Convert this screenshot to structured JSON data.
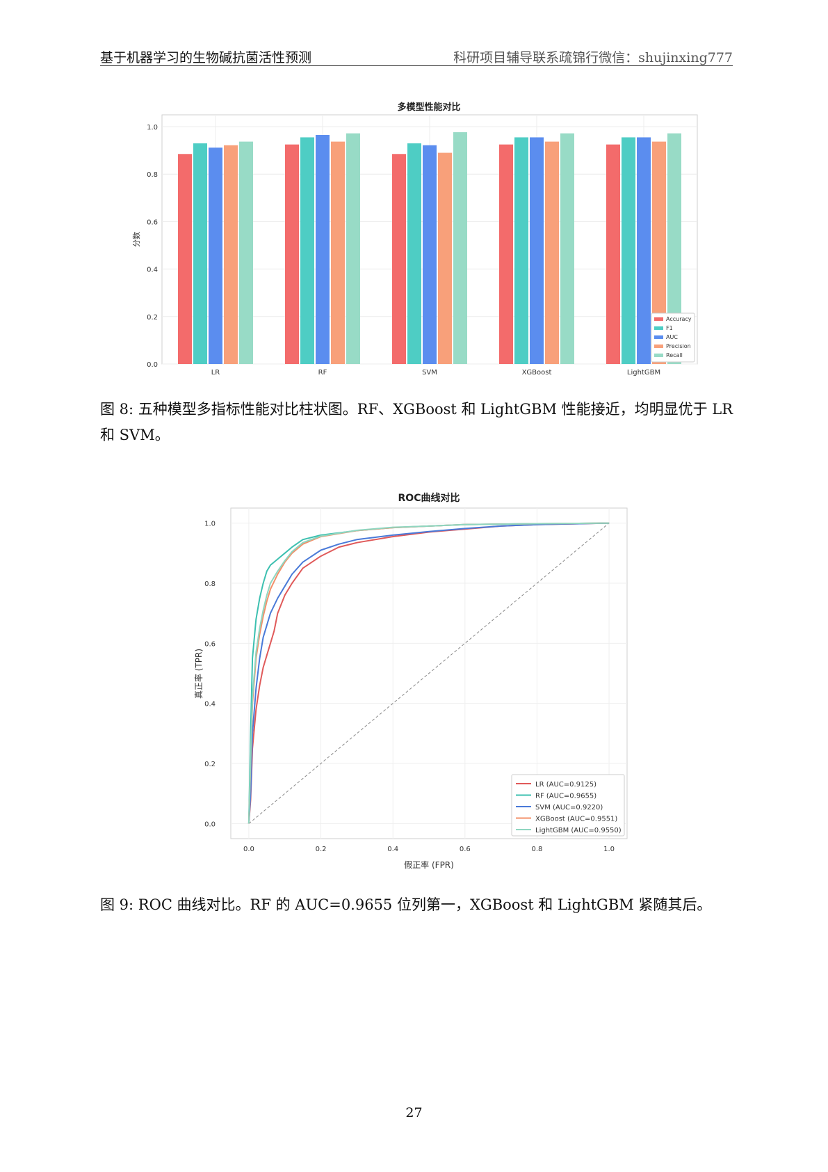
{
  "header": {
    "left": "基于机器学习的生物碱抗菌活性预测",
    "right": "科研项目辅导联系疏锦行微信：shujinxing777"
  },
  "figure8": {
    "caption": "图 8: 五种模型多指标性能对比柱状图。RF、XGBoost 和 LightGBM 性能接近，均明显优于 LR 和 SVM。"
  },
  "figure9": {
    "caption": "图 9: ROC 曲线对比。RF 的 AUC=0.9655 位列第一，XGBoost 和 LightGBM 紧随其后。"
  },
  "page_number": "27",
  "chart_data": [
    {
      "type": "bar",
      "title": "多模型性能对比",
      "xlabel": "",
      "ylabel": "分数",
      "ylim": [
        0,
        1.05
      ],
      "yticks": [
        "0.0",
        "0.2",
        "0.4",
        "0.6",
        "0.8",
        "1.0"
      ],
      "grid": true,
      "legend_position": "lower-right",
      "categories": [
        "LR",
        "RF",
        "SVM",
        "XGBoost",
        "LightGBM"
      ],
      "series": [
        {
          "name": "Accuracy",
          "color": "#f36b6b",
          "values": [
            0.885,
            0.925,
            0.885,
            0.925,
            0.925
          ]
        },
        {
          "name": "F1",
          "color": "#4ecdc4",
          "values": [
            0.93,
            0.955,
            0.93,
            0.955,
            0.955
          ]
        },
        {
          "name": "AUC",
          "color": "#5b8def",
          "values": [
            0.912,
            0.965,
            0.922,
            0.955,
            0.955
          ]
        },
        {
          "name": "Precision",
          "color": "#f8a07a",
          "values": [
            0.922,
            0.937,
            0.89,
            0.937,
            0.937
          ]
        },
        {
          "name": "Recall",
          "color": "#98dbc6",
          "values": [
            0.937,
            0.972,
            0.977,
            0.972,
            0.972
          ]
        }
      ]
    },
    {
      "type": "line",
      "title": "ROC曲线对比",
      "xlabel": "假正率 (FPR)",
      "ylabel": "真正率 (TPR)",
      "xlim": [
        -0.05,
        1.05
      ],
      "ylim": [
        -0.05,
        1.05
      ],
      "xticks": [
        "0.0",
        "0.2",
        "0.4",
        "0.6",
        "0.8",
        "1.0"
      ],
      "yticks": [
        "0.0",
        "0.2",
        "0.4",
        "0.6",
        "0.8",
        "1.0"
      ],
      "grid": true,
      "legend_position": "lower-right",
      "diagonal": [
        [
          0,
          0
        ],
        [
          1,
          1
        ]
      ],
      "series": [
        {
          "name": "LR (AUC=0.9125)",
          "color": "#e05a5a",
          "points": [
            [
              0,
              0
            ],
            [
              0.005,
              0.08
            ],
            [
              0.01,
              0.25
            ],
            [
              0.02,
              0.38
            ],
            [
              0.03,
              0.46
            ],
            [
              0.04,
              0.52
            ],
            [
              0.05,
              0.56
            ],
            [
              0.06,
              0.6
            ],
            [
              0.07,
              0.64
            ],
            [
              0.08,
              0.7
            ],
            [
              0.1,
              0.76
            ],
            [
              0.12,
              0.8
            ],
            [
              0.15,
              0.85
            ],
            [
              0.2,
              0.89
            ],
            [
              0.25,
              0.92
            ],
            [
              0.3,
              0.935
            ],
            [
              0.4,
              0.955
            ],
            [
              0.5,
              0.97
            ],
            [
              0.6,
              0.98
            ],
            [
              0.7,
              0.99
            ],
            [
              0.8,
              0.995
            ],
            [
              1.0,
              1.0
            ]
          ]
        },
        {
          "name": "RF (AUC=0.9655)",
          "color": "#3cc0b0",
          "points": [
            [
              0,
              0
            ],
            [
              0.005,
              0.3
            ],
            [
              0.01,
              0.55
            ],
            [
              0.02,
              0.68
            ],
            [
              0.03,
              0.75
            ],
            [
              0.04,
              0.8
            ],
            [
              0.05,
              0.84
            ],
            [
              0.06,
              0.86
            ],
            [
              0.08,
              0.88
            ],
            [
              0.1,
              0.9
            ],
            [
              0.12,
              0.92
            ],
            [
              0.15,
              0.945
            ],
            [
              0.2,
              0.96
            ],
            [
              0.3,
              0.975
            ],
            [
              0.4,
              0.985
            ],
            [
              0.5,
              0.99
            ],
            [
              0.6,
              0.995
            ],
            [
              0.8,
              0.998
            ],
            [
              1.0,
              1.0
            ]
          ]
        },
        {
          "name": "SVM (AUC=0.9220)",
          "color": "#4a7ad8",
          "points": [
            [
              0,
              0
            ],
            [
              0.005,
              0.1
            ],
            [
              0.01,
              0.3
            ],
            [
              0.02,
              0.45
            ],
            [
              0.03,
              0.55
            ],
            [
              0.04,
              0.62
            ],
            [
              0.05,
              0.66
            ],
            [
              0.06,
              0.7
            ],
            [
              0.08,
              0.75
            ],
            [
              0.1,
              0.79
            ],
            [
              0.12,
              0.83
            ],
            [
              0.15,
              0.87
            ],
            [
              0.2,
              0.91
            ],
            [
              0.25,
              0.93
            ],
            [
              0.3,
              0.945
            ],
            [
              0.4,
              0.96
            ],
            [
              0.5,
              0.972
            ],
            [
              0.6,
              0.982
            ],
            [
              0.7,
              0.99
            ],
            [
              0.8,
              0.995
            ],
            [
              1.0,
              1.0
            ]
          ]
        },
        {
          "name": "XGBoost (AUC=0.9551)",
          "color": "#f3906a",
          "points": [
            [
              0,
              0
            ],
            [
              0.005,
              0.2
            ],
            [
              0.01,
              0.4
            ],
            [
              0.02,
              0.55
            ],
            [
              0.03,
              0.63
            ],
            [
              0.04,
              0.69
            ],
            [
              0.05,
              0.74
            ],
            [
              0.06,
              0.78
            ],
            [
              0.08,
              0.83
            ],
            [
              0.1,
              0.87
            ],
            [
              0.12,
              0.9
            ],
            [
              0.15,
              0.93
            ],
            [
              0.2,
              0.955
            ],
            [
              0.3,
              0.975
            ],
            [
              0.4,
              0.985
            ],
            [
              0.5,
              0.99
            ],
            [
              0.6,
              0.995
            ],
            [
              0.8,
              0.998
            ],
            [
              1.0,
              1.0
            ]
          ]
        },
        {
          "name": "LightGBM (AUC=0.9550)",
          "color": "#8fd6c0",
          "points": [
            [
              0,
              0
            ],
            [
              0.005,
              0.22
            ],
            [
              0.01,
              0.42
            ],
            [
              0.02,
              0.57
            ],
            [
              0.03,
              0.65
            ],
            [
              0.04,
              0.71
            ],
            [
              0.05,
              0.76
            ],
            [
              0.06,
              0.8
            ],
            [
              0.08,
              0.84
            ],
            [
              0.1,
              0.875
            ],
            [
              0.12,
              0.905
            ],
            [
              0.15,
              0.935
            ],
            [
              0.2,
              0.957
            ],
            [
              0.3,
              0.976
            ],
            [
              0.4,
              0.986
            ],
            [
              0.5,
              0.99
            ],
            [
              0.6,
              0.995
            ],
            [
              0.8,
              0.998
            ],
            [
              1.0,
              1.0
            ]
          ]
        }
      ]
    }
  ]
}
